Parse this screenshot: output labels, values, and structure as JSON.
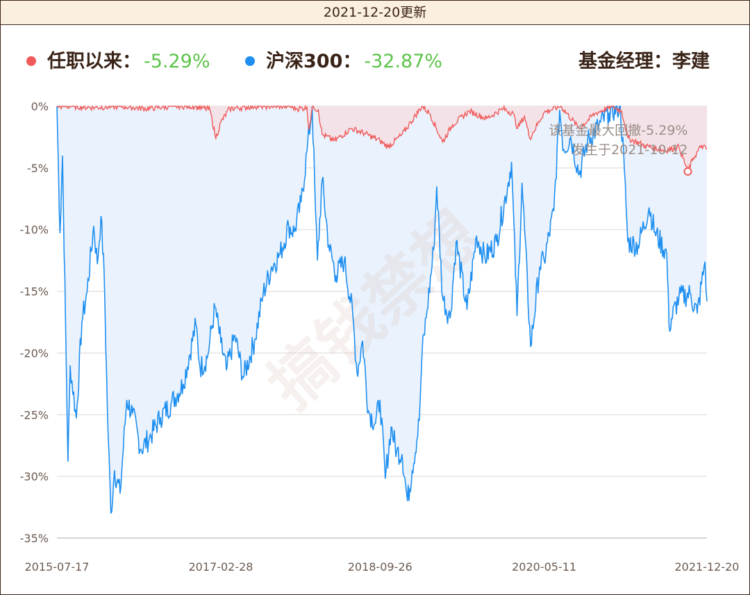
{
  "header": {
    "title": "2021-12-20更新"
  },
  "legend": {
    "fund_label": "任职以来：",
    "fund_value": "-5.29%",
    "index_label": "沪深300：",
    "index_value": "-32.87%",
    "manager": "基金经理：李建"
  },
  "colors": {
    "fund": "#f05a5a",
    "index": "#1e8ff0",
    "value_text": "#5cc44a",
    "fund_fill": "#f3e3e8",
    "index_fill": "#eaf2fd"
  },
  "watermark": "搞钱禁想",
  "chart_data": {
    "type": "line",
    "x_ticks": [
      "2015-07-17",
      "2017-02-28",
      "2018-09-26",
      "2020-05-11",
      "2021-12-20"
    ],
    "y_ticks": [
      "0%",
      "-5%",
      "-10%",
      "-15%",
      "-20%",
      "-25%",
      "-30%",
      "-35%"
    ],
    "ylim": [
      -35,
      0
    ],
    "series": [
      {
        "name": "任职以来",
        "unit": "% drawdown",
        "points": [
          [
            "2015-07-17",
            0
          ],
          [
            "2015-09-01",
            0
          ],
          [
            "2015-12-01",
            -0.1
          ],
          [
            "2016-03-01",
            0
          ],
          [
            "2016-06-01",
            -0.2
          ],
          [
            "2016-09-01",
            0
          ],
          [
            "2016-12-01",
            0
          ],
          [
            "2017-01-20",
            -0.3
          ],
          [
            "2017-02-10",
            -2.6
          ],
          [
            "2017-02-28",
            -1.3
          ],
          [
            "2017-04-01",
            -0.2
          ],
          [
            "2017-07-01",
            0
          ],
          [
            "2017-09-01",
            0
          ],
          [
            "2017-11-01",
            0
          ],
          [
            "2017-12-01",
            -0.2
          ],
          [
            "2018-01-05",
            -0.1
          ],
          [
            "2018-01-12",
            -1.9
          ],
          [
            "2018-01-25",
            0
          ],
          [
            "2018-02-15",
            -0.3
          ],
          [
            "2018-03-01",
            -2.3
          ],
          [
            "2018-04-15",
            -2.8
          ],
          [
            "2018-06-15",
            -1.8
          ],
          [
            "2018-08-01",
            -2.2
          ],
          [
            "2018-09-26",
            -2.8
          ],
          [
            "2018-10-25",
            -3.3
          ],
          [
            "2018-12-15",
            -2.3
          ],
          [
            "2019-01-15",
            -1.3
          ],
          [
            "2019-02-25",
            0
          ],
          [
            "2019-03-25",
            -0.6
          ],
          [
            "2019-05-10",
            -2.9
          ],
          [
            "2019-06-15",
            -1.5
          ],
          [
            "2019-08-15",
            -0.4
          ],
          [
            "2019-10-15",
            -1.0
          ],
          [
            "2019-12-15",
            -0.2
          ],
          [
            "2020-01-20",
            -0.6
          ],
          [
            "2020-02-05",
            -1.8
          ],
          [
            "2020-03-01",
            -0.8
          ],
          [
            "2020-03-20",
            -2.6
          ],
          [
            "2020-05-11",
            -0.5
          ],
          [
            "2020-07-10",
            0
          ],
          [
            "2020-09-15",
            -1.8
          ],
          [
            "2020-11-10",
            -0.6
          ],
          [
            "2021-01-10",
            0
          ],
          [
            "2021-02-15",
            -0.4
          ],
          [
            "2021-03-10",
            -2.6
          ],
          [
            "2021-05-10",
            -3.2
          ],
          [
            "2021-07-20",
            -3.6
          ],
          [
            "2021-09-10",
            -3.3
          ],
          [
            "2021-10-12",
            -5.29
          ],
          [
            "2021-11-01",
            -4.2
          ],
          [
            "2021-12-01",
            -3.2
          ],
          [
            "2021-12-20",
            -3.5
          ]
        ]
      },
      {
        "name": "沪深300",
        "unit": "% drawdown",
        "points": [
          [
            "2015-07-17",
            0
          ],
          [
            "2015-07-28",
            -10.3
          ],
          [
            "2015-08-06",
            -4.0
          ],
          [
            "2015-08-26",
            -28.8
          ],
          [
            "2015-09-03",
            -21.0
          ],
          [
            "2015-09-25",
            -25.3
          ],
          [
            "2015-10-15",
            -17.5
          ],
          [
            "2015-11-03",
            -15.0
          ],
          [
            "2015-11-27",
            -9.7
          ],
          [
            "2015-12-10",
            -12.8
          ],
          [
            "2015-12-23",
            -8.9
          ],
          [
            "2016-01-04",
            -14.0
          ],
          [
            "2016-01-15",
            -24.5
          ],
          [
            "2016-01-28",
            -33.0
          ],
          [
            "2016-02-10",
            -29.5
          ],
          [
            "2016-03-01",
            -31.4
          ],
          [
            "2016-03-25",
            -23.8
          ],
          [
            "2016-04-15",
            -24.9
          ],
          [
            "2016-05-15",
            -27.8
          ],
          [
            "2016-06-15",
            -26.9
          ],
          [
            "2016-07-25",
            -25.2
          ],
          [
            "2016-09-01",
            -24.1
          ],
          [
            "2016-10-15",
            -22.5
          ],
          [
            "2016-11-30",
            -17.7
          ],
          [
            "2016-12-15",
            -21.2
          ],
          [
            "2017-01-10",
            -20.4
          ],
          [
            "2017-02-07",
            -16.3
          ],
          [
            "2017-02-28",
            -19.2
          ],
          [
            "2017-03-20",
            -21.4
          ],
          [
            "2017-04-20",
            -18.6
          ],
          [
            "2017-05-20",
            -22.0
          ],
          [
            "2017-06-30",
            -19.0
          ],
          [
            "2017-07-31",
            -15.2
          ],
          [
            "2017-08-31",
            -13.0
          ],
          [
            "2017-09-30",
            -12.0
          ],
          [
            "2017-10-31",
            -9.7
          ],
          [
            "2017-11-20",
            -10.2
          ],
          [
            "2017-12-15",
            -7.8
          ],
          [
            "2018-01-05",
            -3.7
          ],
          [
            "2018-01-24",
            0
          ],
          [
            "2018-02-05",
            -8.5
          ],
          [
            "2018-02-12",
            -12.5
          ],
          [
            "2018-03-01",
            -6.0
          ],
          [
            "2018-03-25",
            -11.3
          ],
          [
            "2018-04-20",
            -13.7
          ],
          [
            "2018-05-20",
            -12.5
          ],
          [
            "2018-06-20",
            -17.0
          ],
          [
            "2018-07-05",
            -21.6
          ],
          [
            "2018-07-25",
            -19.0
          ],
          [
            "2018-08-15",
            -24.7
          ],
          [
            "2018-09-10",
            -25.7
          ],
          [
            "2018-09-26",
            -23.8
          ],
          [
            "2018-10-15",
            -30.2
          ],
          [
            "2018-11-05",
            -26.0
          ],
          [
            "2018-11-25",
            -28.0
          ],
          [
            "2018-12-15",
            -28.2
          ],
          [
            "2019-01-03",
            -32.0
          ],
          [
            "2019-01-20",
            -29.5
          ],
          [
            "2019-02-15",
            -25.5
          ],
          [
            "2019-02-25",
            -20.0
          ],
          [
            "2019-03-15",
            -16.5
          ],
          [
            "2019-04-08",
            -11.6
          ],
          [
            "2019-04-19",
            -6.5
          ],
          [
            "2019-05-10",
            -15.5
          ],
          [
            "2019-06-06",
            -17.2
          ],
          [
            "2019-06-28",
            -11.0
          ],
          [
            "2019-08-06",
            -16.5
          ],
          [
            "2019-09-10",
            -10.5
          ],
          [
            "2019-10-10",
            -12.3
          ],
          [
            "2019-11-20",
            -11.0
          ],
          [
            "2019-12-31",
            -6.5
          ],
          [
            "2020-01-14",
            -4.5
          ],
          [
            "2020-02-03",
            -17.0
          ],
          [
            "2020-02-21",
            -6.2
          ],
          [
            "2020-03-23",
            -19.5
          ],
          [
            "2020-04-25",
            -13.0
          ],
          [
            "2020-05-11",
            -12.5
          ],
          [
            "2020-06-15",
            -8.5
          ],
          [
            "2020-07-06",
            -0.3
          ],
          [
            "2020-07-20",
            -3.5
          ],
          [
            "2020-08-15",
            -2.5
          ],
          [
            "2020-09-15",
            -5.5
          ],
          [
            "2020-10-15",
            -2.8
          ],
          [
            "2020-11-25",
            -1.6
          ],
          [
            "2020-12-31",
            -0.5
          ],
          [
            "2021-02-10",
            0
          ],
          [
            "2021-02-25",
            -5.3
          ],
          [
            "2021-03-09",
            -11.0
          ],
          [
            "2021-04-15",
            -11.3
          ],
          [
            "2021-05-25",
            -8.2
          ],
          [
            "2021-06-15",
            -10.2
          ],
          [
            "2021-07-28",
            -12.0
          ],
          [
            "2021-08-05",
            -17.8
          ],
          [
            "2021-09-10",
            -15.5
          ],
          [
            "2021-10-20",
            -15.2
          ],
          [
            "2021-11-15",
            -16.8
          ],
          [
            "2021-12-13",
            -12.6
          ],
          [
            "2021-12-20",
            -15.8
          ]
        ]
      }
    ],
    "annotation": {
      "line1": "该基金最大回撤-5.29%",
      "line2": "发生于2021-10-12",
      "date": "2021-10-12",
      "value": -5.29
    }
  }
}
